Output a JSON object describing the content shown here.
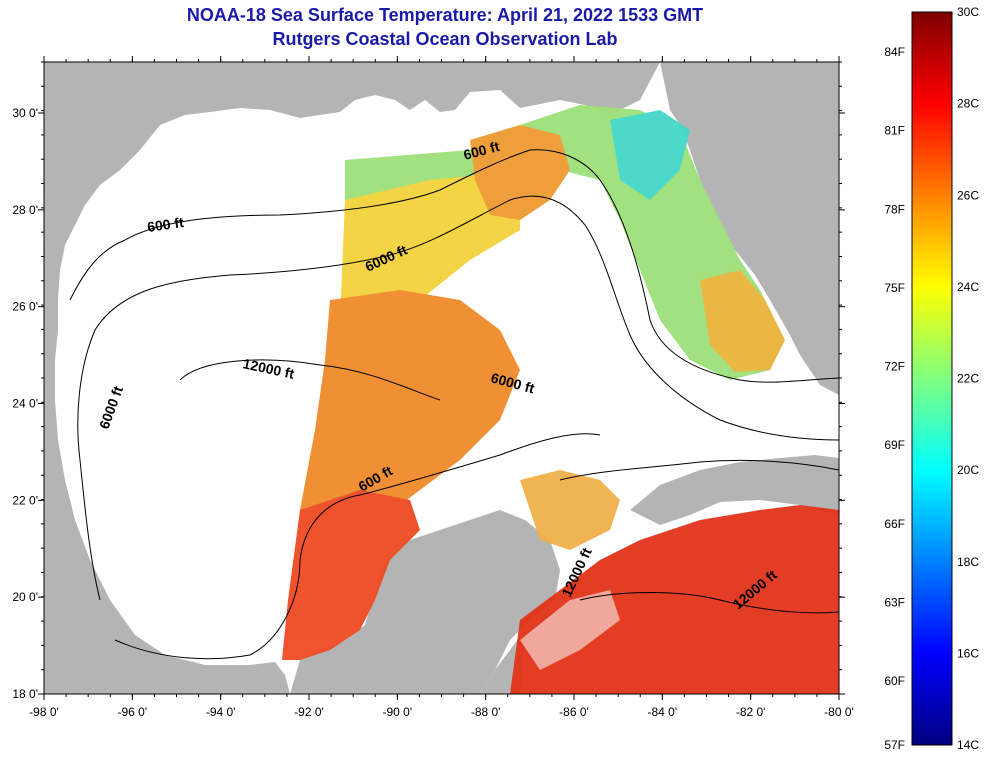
{
  "header": {
    "title": "NOAA-18 Sea Surface Temperature:  April 21, 2022 1533 GMT",
    "subtitle": "Rutgers Coastal Ocean Observation Lab"
  },
  "map": {
    "lon_ticks": [
      "-98 0'",
      "-96 0'",
      "-94 0'",
      "-92 0'",
      "-90 0'",
      "-88 0'",
      "-86 0'",
      "-84 0'",
      "-82 0'",
      "-80 0'"
    ],
    "lat_ticks": [
      "30 0'",
      "28 0'",
      "26 0'",
      "24 0'",
      "22 0'",
      "20 0'",
      "18 0'"
    ],
    "bathymetry_labels": [
      "600 ft",
      "600 ft",
      "6000 ft",
      "12000 ft",
      "6000 ft",
      "6000 ft",
      "600 ft",
      "12000 ft",
      "12000 ft"
    ],
    "land_color": "#b4b4b4",
    "cloud_color": "#ffffff"
  },
  "colorbar": {
    "fahrenheit": [
      "84F",
      "81F",
      "78F",
      "75F",
      "72F",
      "69F",
      "66F",
      "63F",
      "60F",
      "57F"
    ],
    "celsius": [
      "30C",
      "28C",
      "26C",
      "24C",
      "22C",
      "20C",
      "18C",
      "16C",
      "14C"
    ],
    "colors": [
      "#00007f",
      "#0000ff",
      "#0080ff",
      "#00ffff",
      "#80ff80",
      "#ffff00",
      "#ff8000",
      "#ff0000",
      "#7f0000"
    ]
  }
}
